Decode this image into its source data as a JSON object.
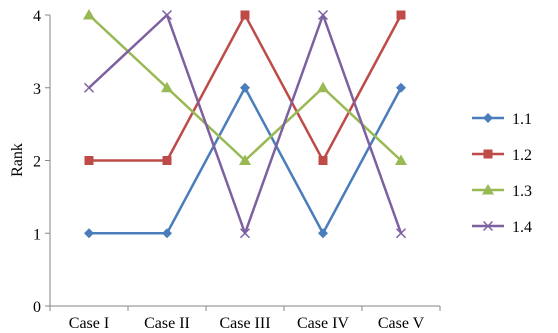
{
  "chart_data": {
    "type": "line",
    "title": "",
    "xlabel": "",
    "ylabel": "Rank",
    "categories": [
      "Case I",
      "Case II",
      "Case III",
      "Case IV",
      "Case V"
    ],
    "ylim": [
      0,
      4
    ],
    "yticks": [
      0,
      1,
      2,
      3,
      4
    ],
    "grid": false,
    "legend_position": "right",
    "series": [
      {
        "name": "1.1",
        "values": [
          1,
          1,
          3,
          1,
          3
        ],
        "color": "#4a7ebb",
        "marker": "diamond"
      },
      {
        "name": "1.2",
        "values": [
          2,
          2,
          4,
          2,
          4
        ],
        "color": "#be4b48",
        "marker": "square"
      },
      {
        "name": "1.3",
        "values": [
          4,
          3,
          2,
          3,
          2
        ],
        "color": "#98b954",
        "marker": "triangle"
      },
      {
        "name": "1.4",
        "values": [
          3,
          4,
          1,
          4,
          1
        ],
        "color": "#7d60a0",
        "marker": "x"
      }
    ]
  }
}
